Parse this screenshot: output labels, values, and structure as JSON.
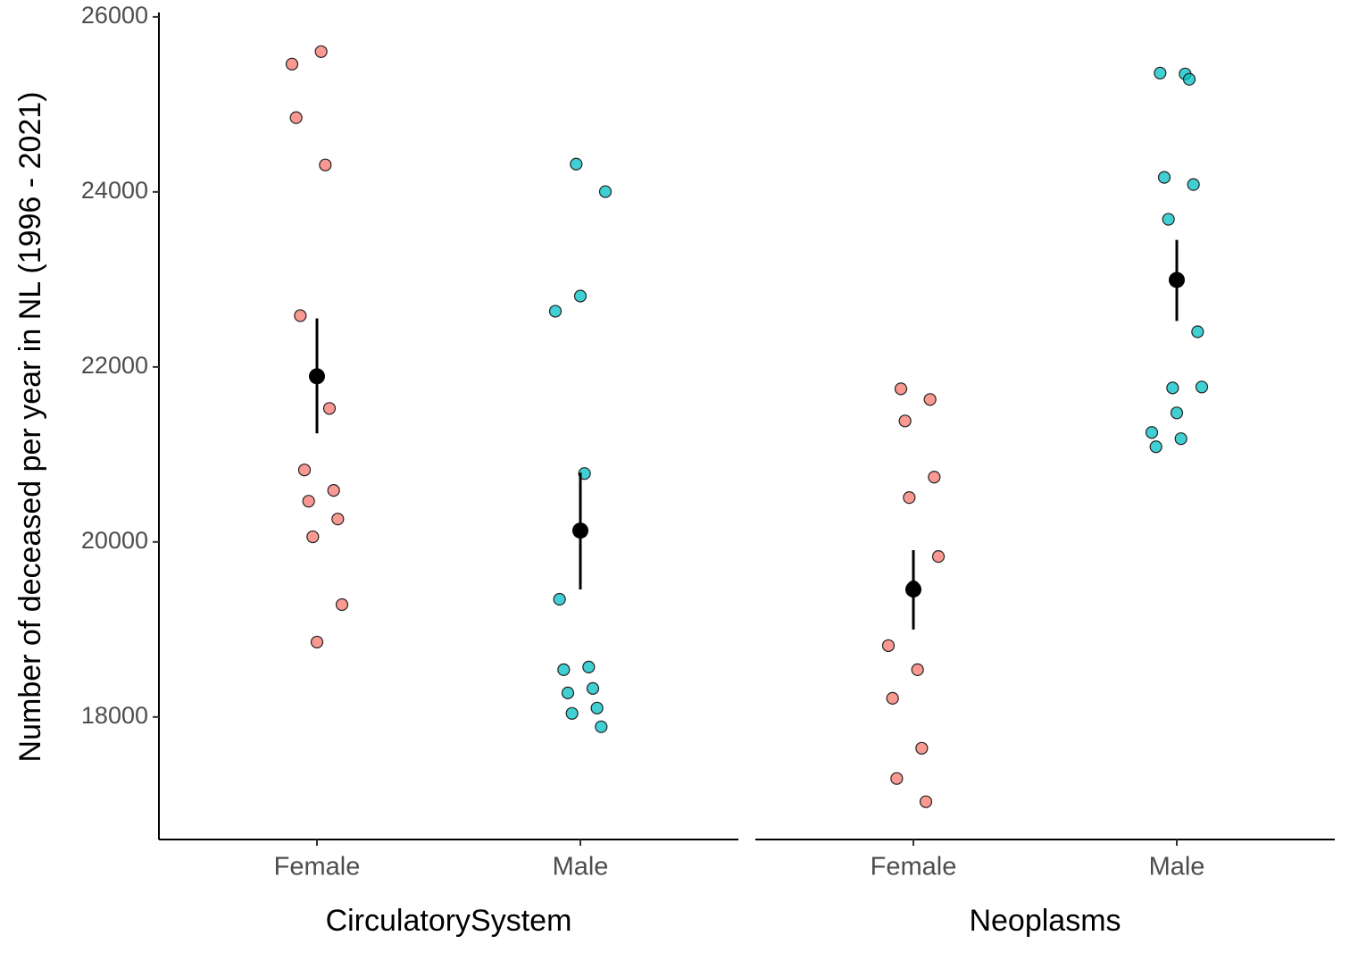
{
  "chart_data": [
    {
      "type": "strip",
      "xlabel": "CirculatorySystem",
      "ylabel": "Number of deceased per year in NL (1996 - 2021)",
      "categories": [
        "Female",
        "Male"
      ],
      "colors": [
        "#F8766D",
        "#00BFC4"
      ],
      "values": [
        [
          25460,
          25603,
          24848,
          24308,
          22586,
          21526,
          20823,
          20589,
          20466,
          20262,
          20059,
          19284,
          18856
        ],
        [
          24318,
          24003,
          22810,
          22637,
          20782,
          19345,
          18571,
          18540,
          18326,
          18275,
          18102,
          18041,
          17888
        ]
      ],
      "means": [
        21893,
        20130
      ],
      "ci_low": [
        21241,
        19457
      ],
      "ci_high": [
        22555,
        20792
      ],
      "ylim": [
        16600,
        26050
      ],
      "yticks": [
        18000,
        20000,
        22000,
        24000,
        26000
      ]
    },
    {
      "type": "strip",
      "xlabel": "Neoplasms",
      "categories": [
        "Female",
        "Male"
      ],
      "colors": [
        "#F8766D",
        "#00BFC4"
      ],
      "values": [
        [
          21750,
          21628,
          21383,
          20741,
          20507,
          19834,
          19488,
          18815,
          18540,
          18214,
          17643,
          17297,
          17032
        ],
        [
          25348,
          25358,
          25287,
          24166,
          24084,
          23687,
          22402,
          21760,
          21771,
          21475,
          21251,
          21180,
          21088
        ]
      ],
      "means": [
        19457,
        22994
      ],
      "ci_low": [
        18999,
        22525
      ],
      "ci_high": [
        19906,
        23452
      ],
      "ylim": [
        16600,
        26050
      ]
    }
  ]
}
